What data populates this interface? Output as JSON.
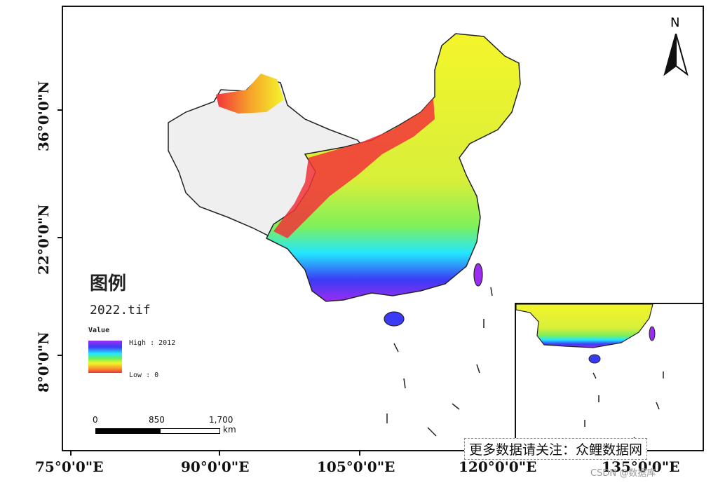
{
  "map": {
    "legend_title": "图例",
    "file_name": "2022.tif",
    "value_heading": "Value",
    "high_label": "High : 2012",
    "low_label": "Low : 0",
    "ramp_colors": [
      "#9b2df0",
      "#3b3bf5",
      "#22e7ff",
      "#6df05a",
      "#f4f52a",
      "#f6a22a",
      "#f2333a"
    ],
    "north_label": "N",
    "scale": {
      "ticks": [
        "0",
        "850",
        "1,700"
      ],
      "unit": "km"
    },
    "lat_labels": [
      "36°0'0\"N",
      "22°0'0\"N",
      "8°0'0\"N"
    ],
    "lon_labels": [
      "75°0'0\"E",
      "90°0'0\"E",
      "105°0'0\"E",
      "120°0'0\"E",
      "135°0'0\"E"
    ]
  },
  "watermark": "更多数据请关注：众鲤数据网",
  "csdn_credit": "CSDN @数据库"
}
